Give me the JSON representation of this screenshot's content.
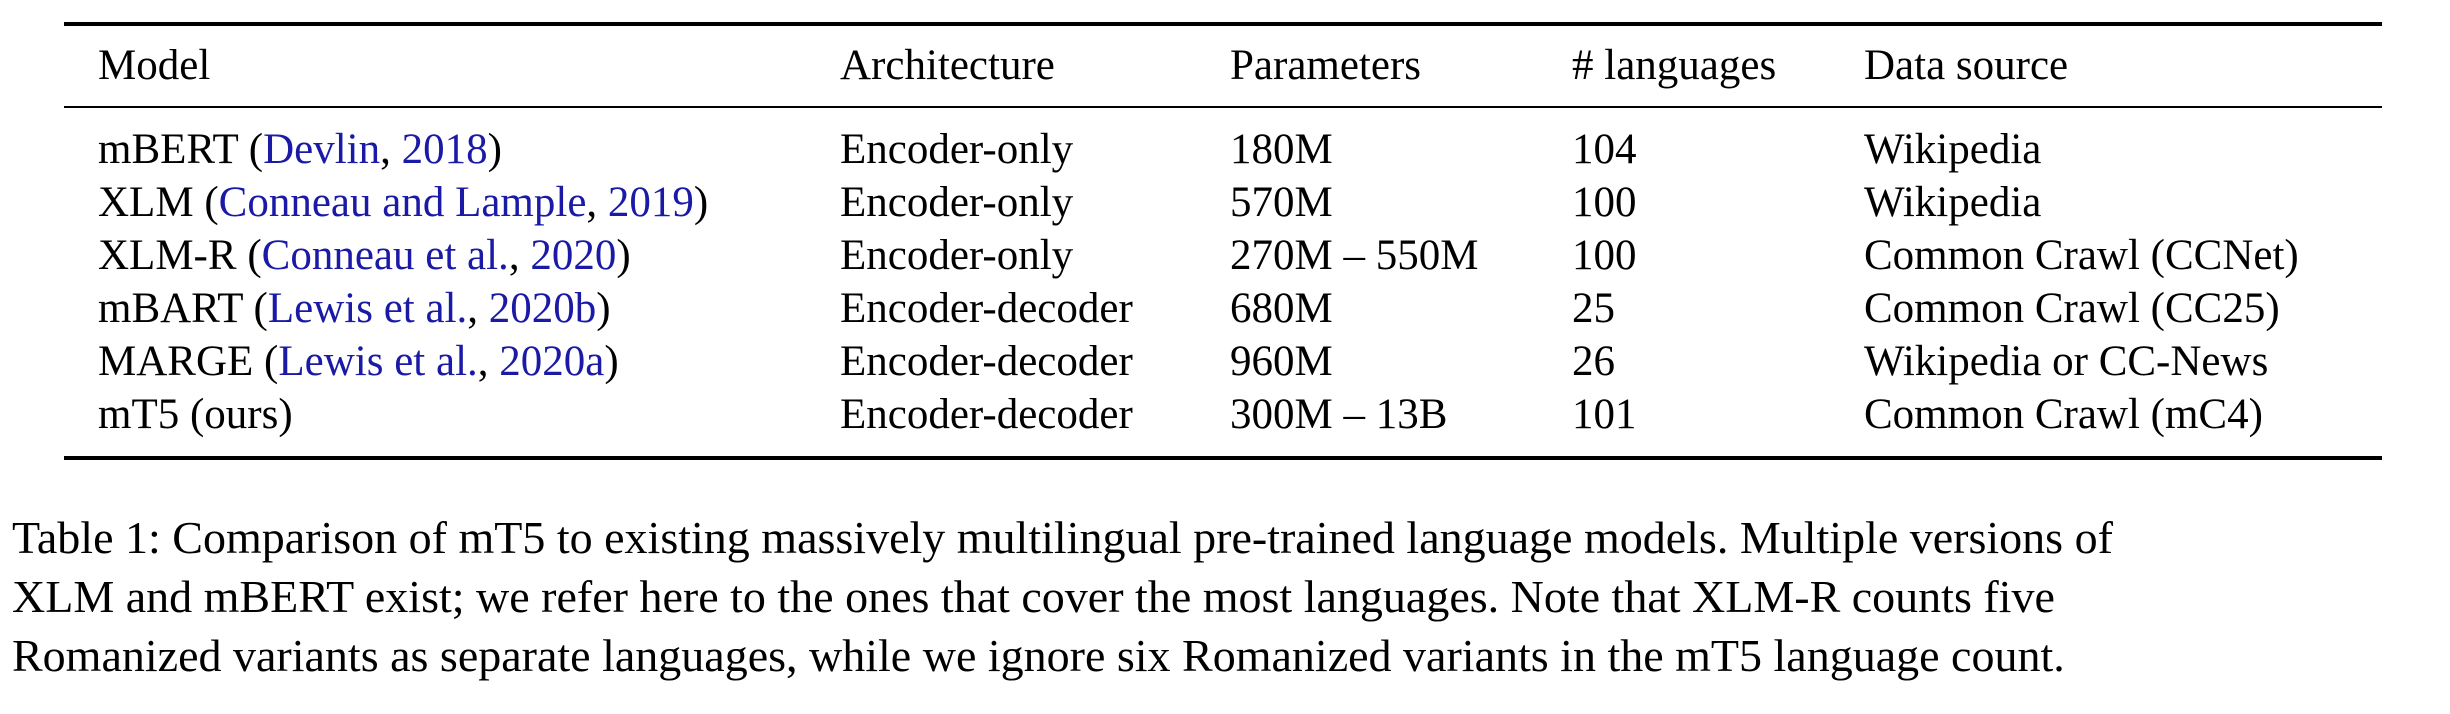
{
  "table": {
    "headers": [
      "Model",
      "Architecture",
      "Parameters",
      "# languages",
      "Data source"
    ],
    "rows": [
      {
        "model": "mBERT",
        "cite_pre": " (",
        "cite_author": "Devlin",
        "cite_sep": ", ",
        "cite_year": "2018",
        "cite_post": ")",
        "architecture": "Encoder-only",
        "parameters": "180M",
        "languages": "104",
        "data_source": "Wikipedia"
      },
      {
        "model": "XLM",
        "cite_pre": " (",
        "cite_author": "Conneau and Lample",
        "cite_sep": ", ",
        "cite_year": "2019",
        "cite_post": ")",
        "architecture": "Encoder-only",
        "parameters": "570M",
        "languages": "100",
        "data_source": "Wikipedia"
      },
      {
        "model": "XLM-R",
        "cite_pre": " (",
        "cite_author": "Conneau et al.",
        "cite_sep": ", ",
        "cite_year": "2020",
        "cite_post": ")",
        "architecture": "Encoder-only",
        "parameters": "270M – 550M",
        "languages": "100",
        "data_source": "Common Crawl (CCNet)"
      },
      {
        "model": "mBART",
        "cite_pre": " (",
        "cite_author": "Lewis et al.",
        "cite_sep": ", ",
        "cite_year": "2020b",
        "cite_post": ")",
        "architecture": "Encoder-decoder",
        "parameters": "680M",
        "languages": "25",
        "data_source": "Common Crawl (CC25)"
      },
      {
        "model": "MARGE",
        "cite_pre": " (",
        "cite_author": "Lewis et al.",
        "cite_sep": ", ",
        "cite_year": "2020a",
        "cite_post": ")",
        "architecture": "Encoder-decoder",
        "parameters": "960M",
        "languages": "26",
        "data_source": "Wikipedia or CC-News"
      },
      {
        "model": "mT5 (ours)",
        "architecture": "Encoder-decoder",
        "parameters": "300M – 13B",
        "languages": "101",
        "data_source": "Common Crawl (mC4)"
      }
    ],
    "link_color": "#1a1aa6"
  },
  "caption": {
    "lines": [
      "Table 1: Comparison of mT5 to existing massively multilingual pre-trained language models. Multiple versions of",
      "XLM and mBERT exist; we refer here to the ones that cover the most languages. Note that XLM-R counts five",
      "Romanized variants as separate languages, while we ignore six Romanized variants in the mT5 language count."
    ]
  }
}
